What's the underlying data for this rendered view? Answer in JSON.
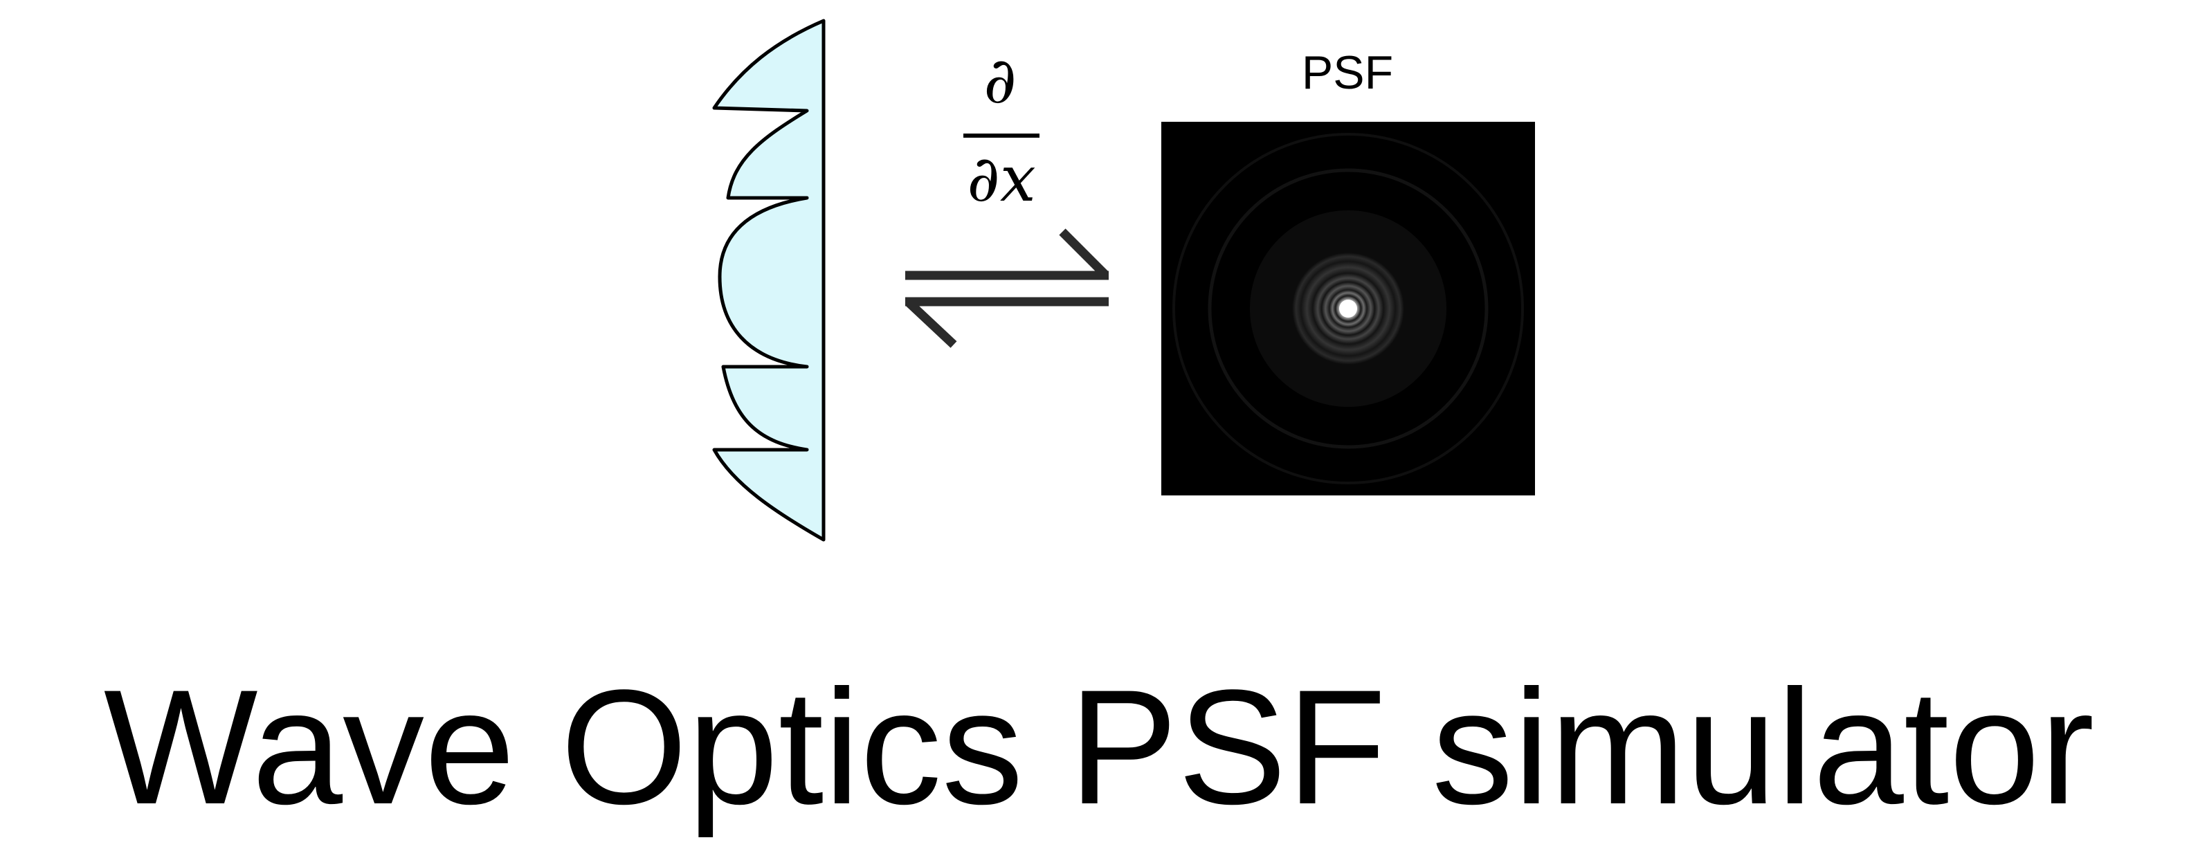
{
  "diagram": {
    "title": "Wave Optics PSF simulator",
    "psf_label": "PSF",
    "derivative": {
      "numerator": "∂",
      "denominator": "∂x"
    },
    "lens_fill_color": "#d9f7fb",
    "lens_stroke_color": "#000000",
    "arrow_color": "#2b2b2b",
    "psf_background_color": "#000000"
  }
}
